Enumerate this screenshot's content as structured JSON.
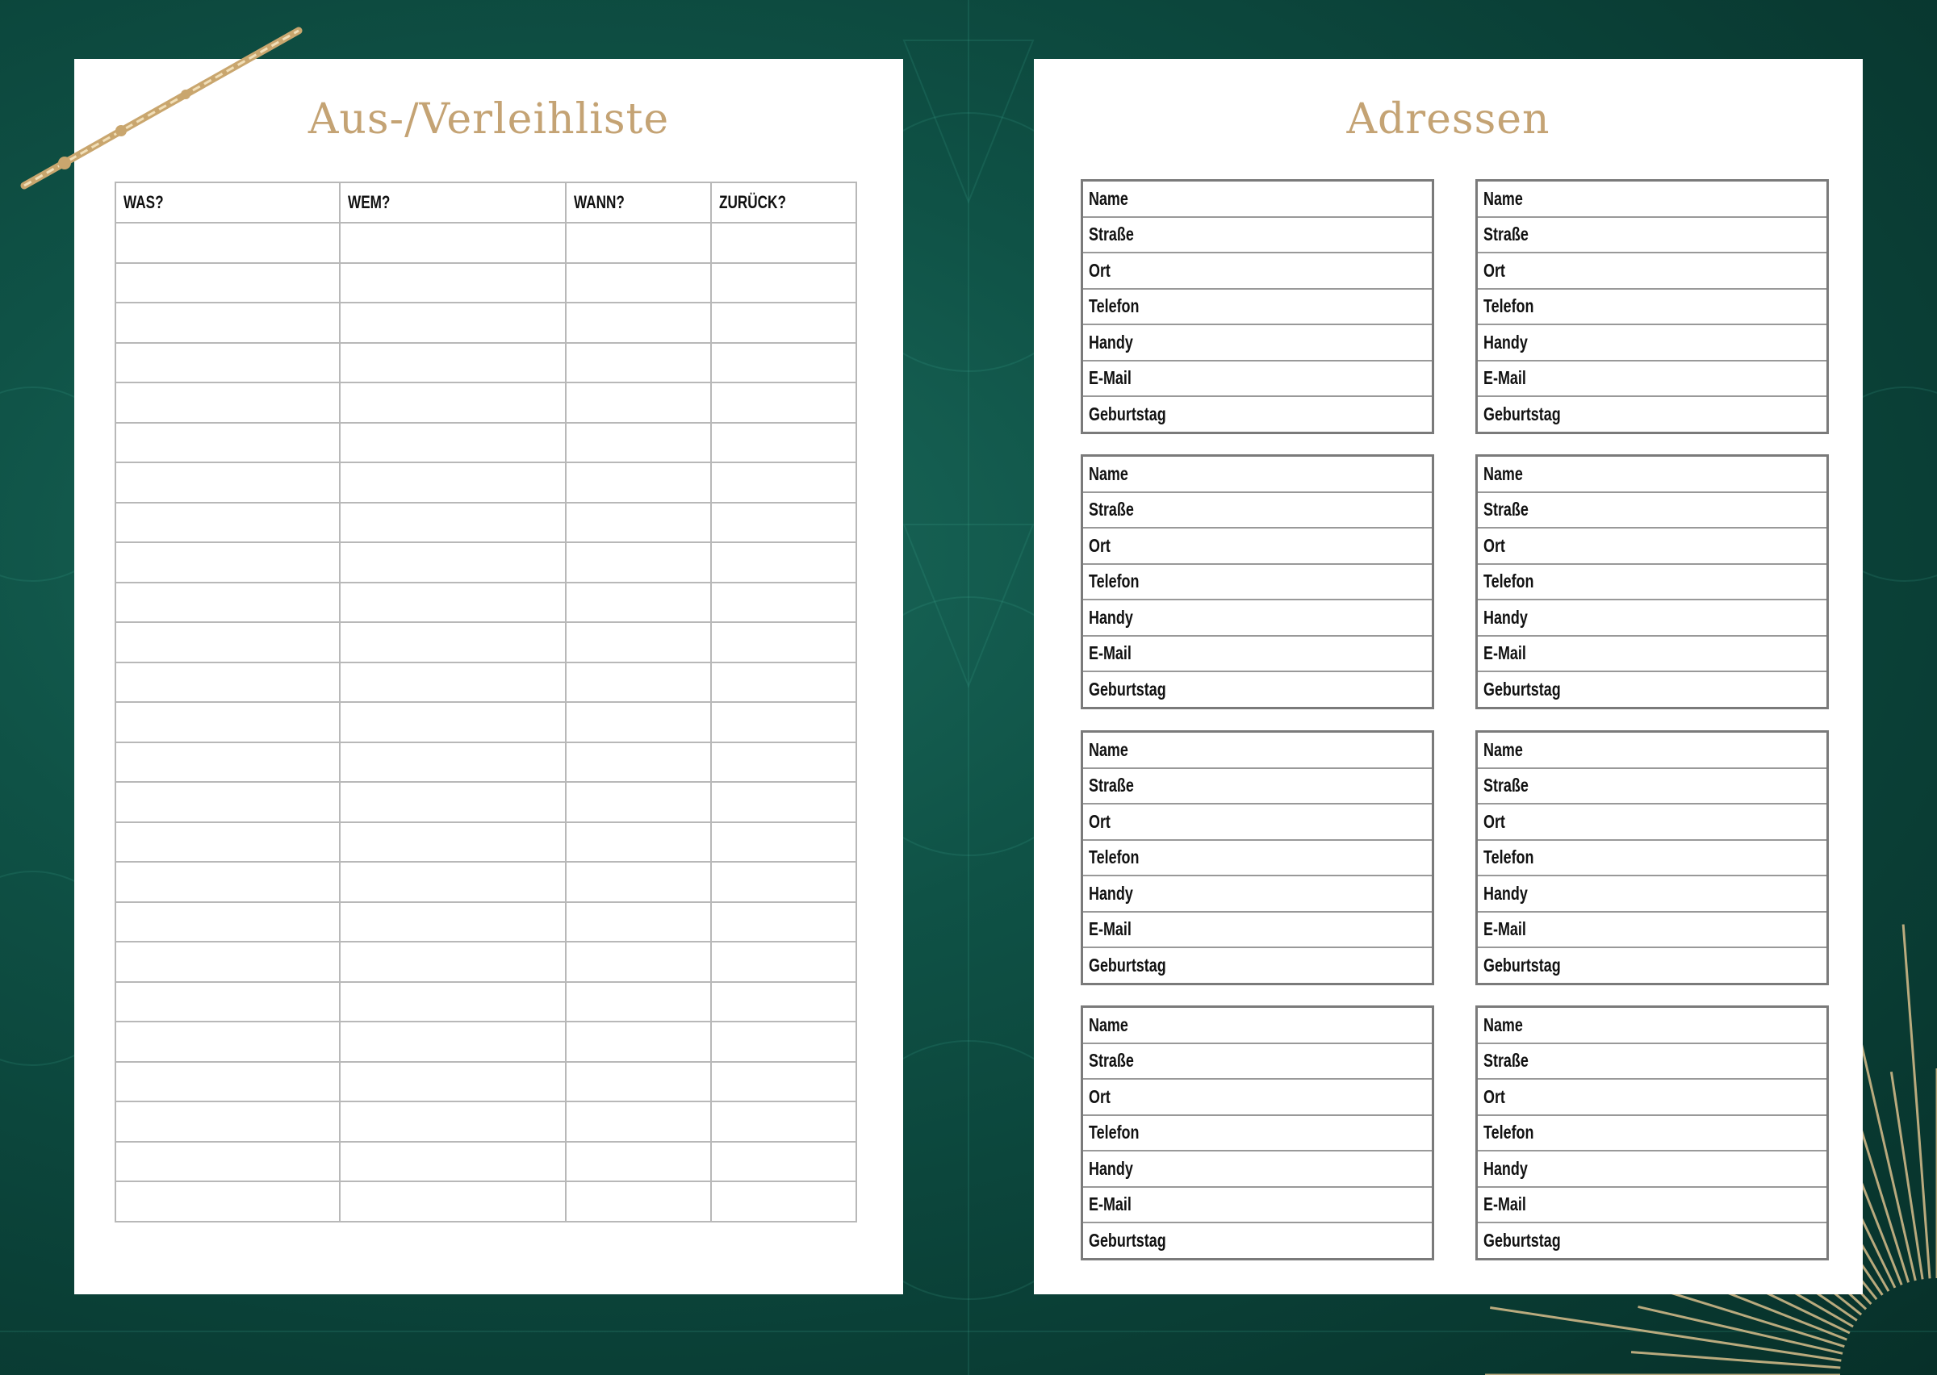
{
  "left_page": {
    "title": "Aus-/Verleihliste",
    "columns": [
      "WAS?",
      "WEM?",
      "WANN?",
      "ZURÜCK?"
    ]
  },
  "right_page": {
    "title": "Adressen",
    "fields": [
      "Name",
      "Straße",
      "Ort",
      "Telefon",
      "Handy",
      "E-Mail",
      "Geburtstag"
    ]
  },
  "colors": {
    "background": "#0f5246",
    "gold": "#c4a374",
    "paper": "#ffffff"
  },
  "decorations": [
    "wand-icon",
    "sunburst"
  ]
}
